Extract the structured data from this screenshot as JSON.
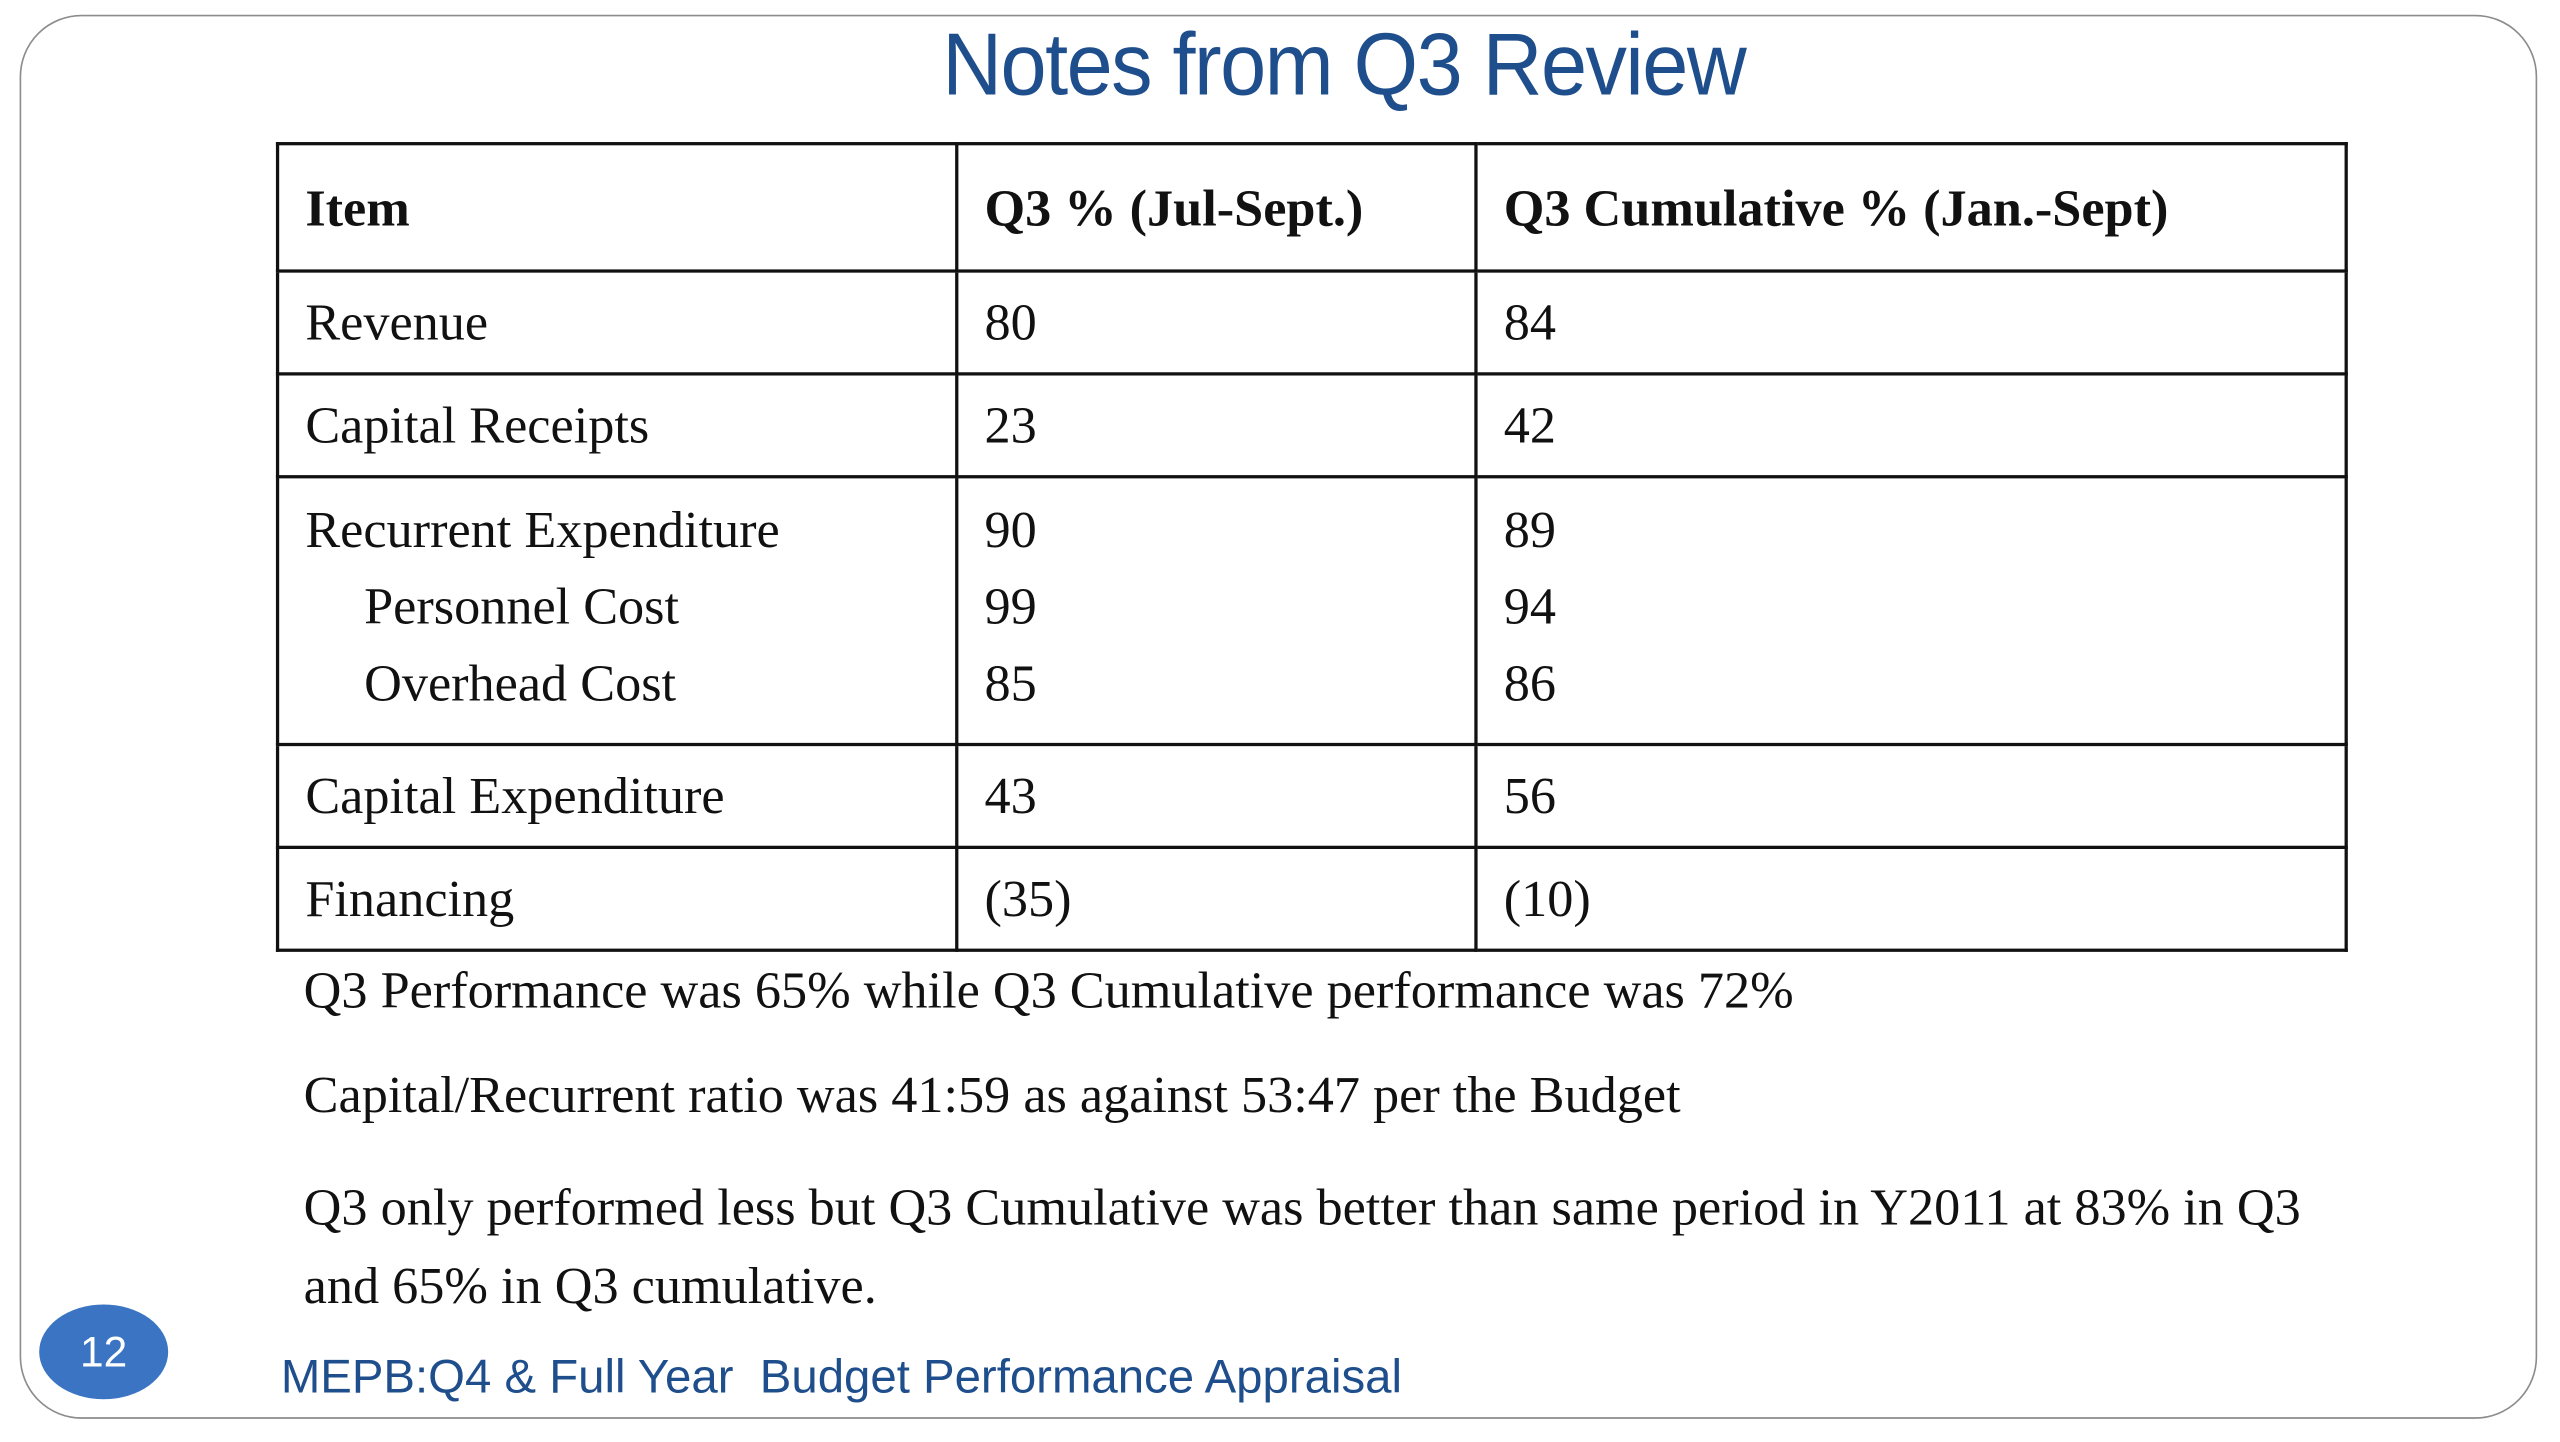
{
  "slide": {
    "title": "Notes from Q3 Review",
    "page_number": "12",
    "footer": "MEPB:Q4 & Full Year  Budget Performance Appraisal"
  },
  "table": {
    "headers": [
      "Item",
      "Q3 % (Jul-Sept.)",
      "Q3 Cumulative % (Jan.-Sept)"
    ],
    "rows": [
      {
        "item": "Revenue",
        "q3": "80",
        "cumulative": "84"
      },
      {
        "item": "Capital Receipts",
        "q3": "23",
        "cumulative": "42"
      },
      {
        "item": "Recurrent Expenditure",
        "q3": "90",
        "cumulative": "89",
        "sub": [
          {
            "item": "Personnel Cost",
            "q3": "99",
            "cumulative": "94"
          },
          {
            "item": "Overhead Cost",
            "q3": "85",
            "cumulative": "86"
          }
        ]
      },
      {
        "item": "Capital Expenditure",
        "q3": "43",
        "cumulative": "56"
      },
      {
        "item": "Financing",
        "q3": "(35)",
        "cumulative": "(10)"
      }
    ]
  },
  "notes": [
    "Q3 Performance was 65% while Q3 Cumulative performance was 72%",
    "Capital/Recurrent ratio was 41:59 as against 53:47 per the Budget",
    "Q3 only performed less but Q3 Cumulative was better than same period in Y2011 at 83% in Q3 and 65% in Q3 cumulative."
  ],
  "colors": {
    "title": "#1f4e8c",
    "badge": "#3a74c2",
    "footer": "#1f4e8c",
    "frame": "#8c8c8c"
  }
}
